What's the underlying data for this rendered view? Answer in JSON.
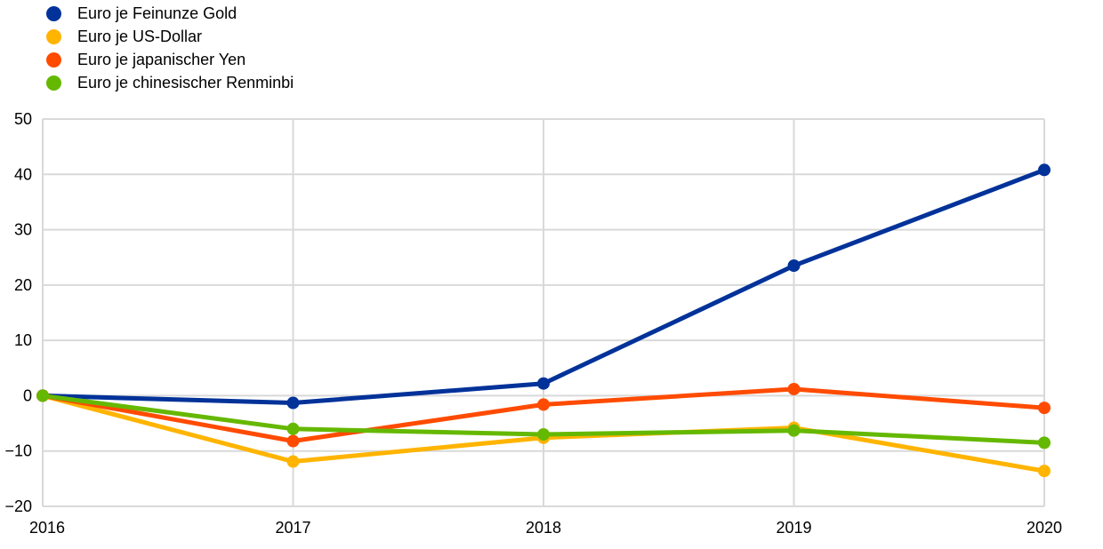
{
  "chart_data": {
    "type": "line",
    "x": [
      "2016",
      "2017",
      "2018",
      "2019",
      "2020"
    ],
    "ylim": [
      -20,
      50
    ],
    "yticks": [
      50,
      40,
      30,
      20,
      10,
      0,
      -10,
      -20
    ],
    "grid": true,
    "legend_position": "top-left",
    "series": [
      {
        "name": "Euro je Feinunze Gold",
        "color": "#003299",
        "values": [
          0,
          -1.3,
          2.2,
          23.5,
          40.8
        ]
      },
      {
        "name": "Euro je US-Dollar",
        "color": "#FFB400",
        "values": [
          0,
          -11.9,
          -7.6,
          -5.8,
          -13.6
        ]
      },
      {
        "name": "Euro je japanischer Yen",
        "color": "#FF4B00",
        "values": [
          0,
          -8.2,
          -1.6,
          1.2,
          -2.2
        ]
      },
      {
        "name": "Euro je chinesischer Renminbi",
        "color": "#65B800",
        "values": [
          0,
          -6.0,
          -7.0,
          -6.3,
          -8.5
        ]
      }
    ]
  }
}
